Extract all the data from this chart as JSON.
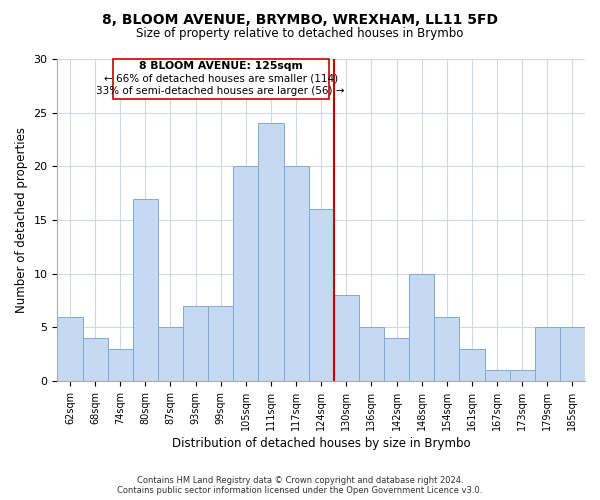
{
  "title": "8, BLOOM AVENUE, BRYMBO, WREXHAM, LL11 5FD",
  "subtitle": "Size of property relative to detached houses in Brymbo",
  "xlabel": "Distribution of detached houses by size in Brymbo",
  "ylabel": "Number of detached properties",
  "bin_labels": [
    "62sqm",
    "68sqm",
    "74sqm",
    "80sqm",
    "87sqm",
    "93sqm",
    "99sqm",
    "105sqm",
    "111sqm",
    "117sqm",
    "124sqm",
    "130sqm",
    "136sqm",
    "142sqm",
    "148sqm",
    "154sqm",
    "161sqm",
    "167sqm",
    "173sqm",
    "179sqm",
    "185sqm"
  ],
  "bar_heights": [
    6,
    4,
    3,
    17,
    5,
    7,
    7,
    20,
    24,
    20,
    16,
    8,
    5,
    4,
    10,
    6,
    3,
    1,
    1,
    5,
    5
  ],
  "bar_color": "#c5d9f1",
  "bar_edge_color": "#7da9d8",
  "ref_line_color": "#cc0000",
  "ref_line_x": 10.5,
  "annotation_title": "8 BLOOM AVENUE: 125sqm",
  "annotation_line1": "← 66% of detached houses are smaller (114)",
  "annotation_line2": "33% of semi-detached houses are larger (56) →",
  "ylim": [
    0,
    30
  ],
  "yticks": [
    0,
    5,
    10,
    15,
    20,
    25,
    30
  ],
  "footer_line1": "Contains HM Land Registry data © Crown copyright and database right 2024.",
  "footer_line2": "Contains public sector information licensed under the Open Government Licence v3.0."
}
